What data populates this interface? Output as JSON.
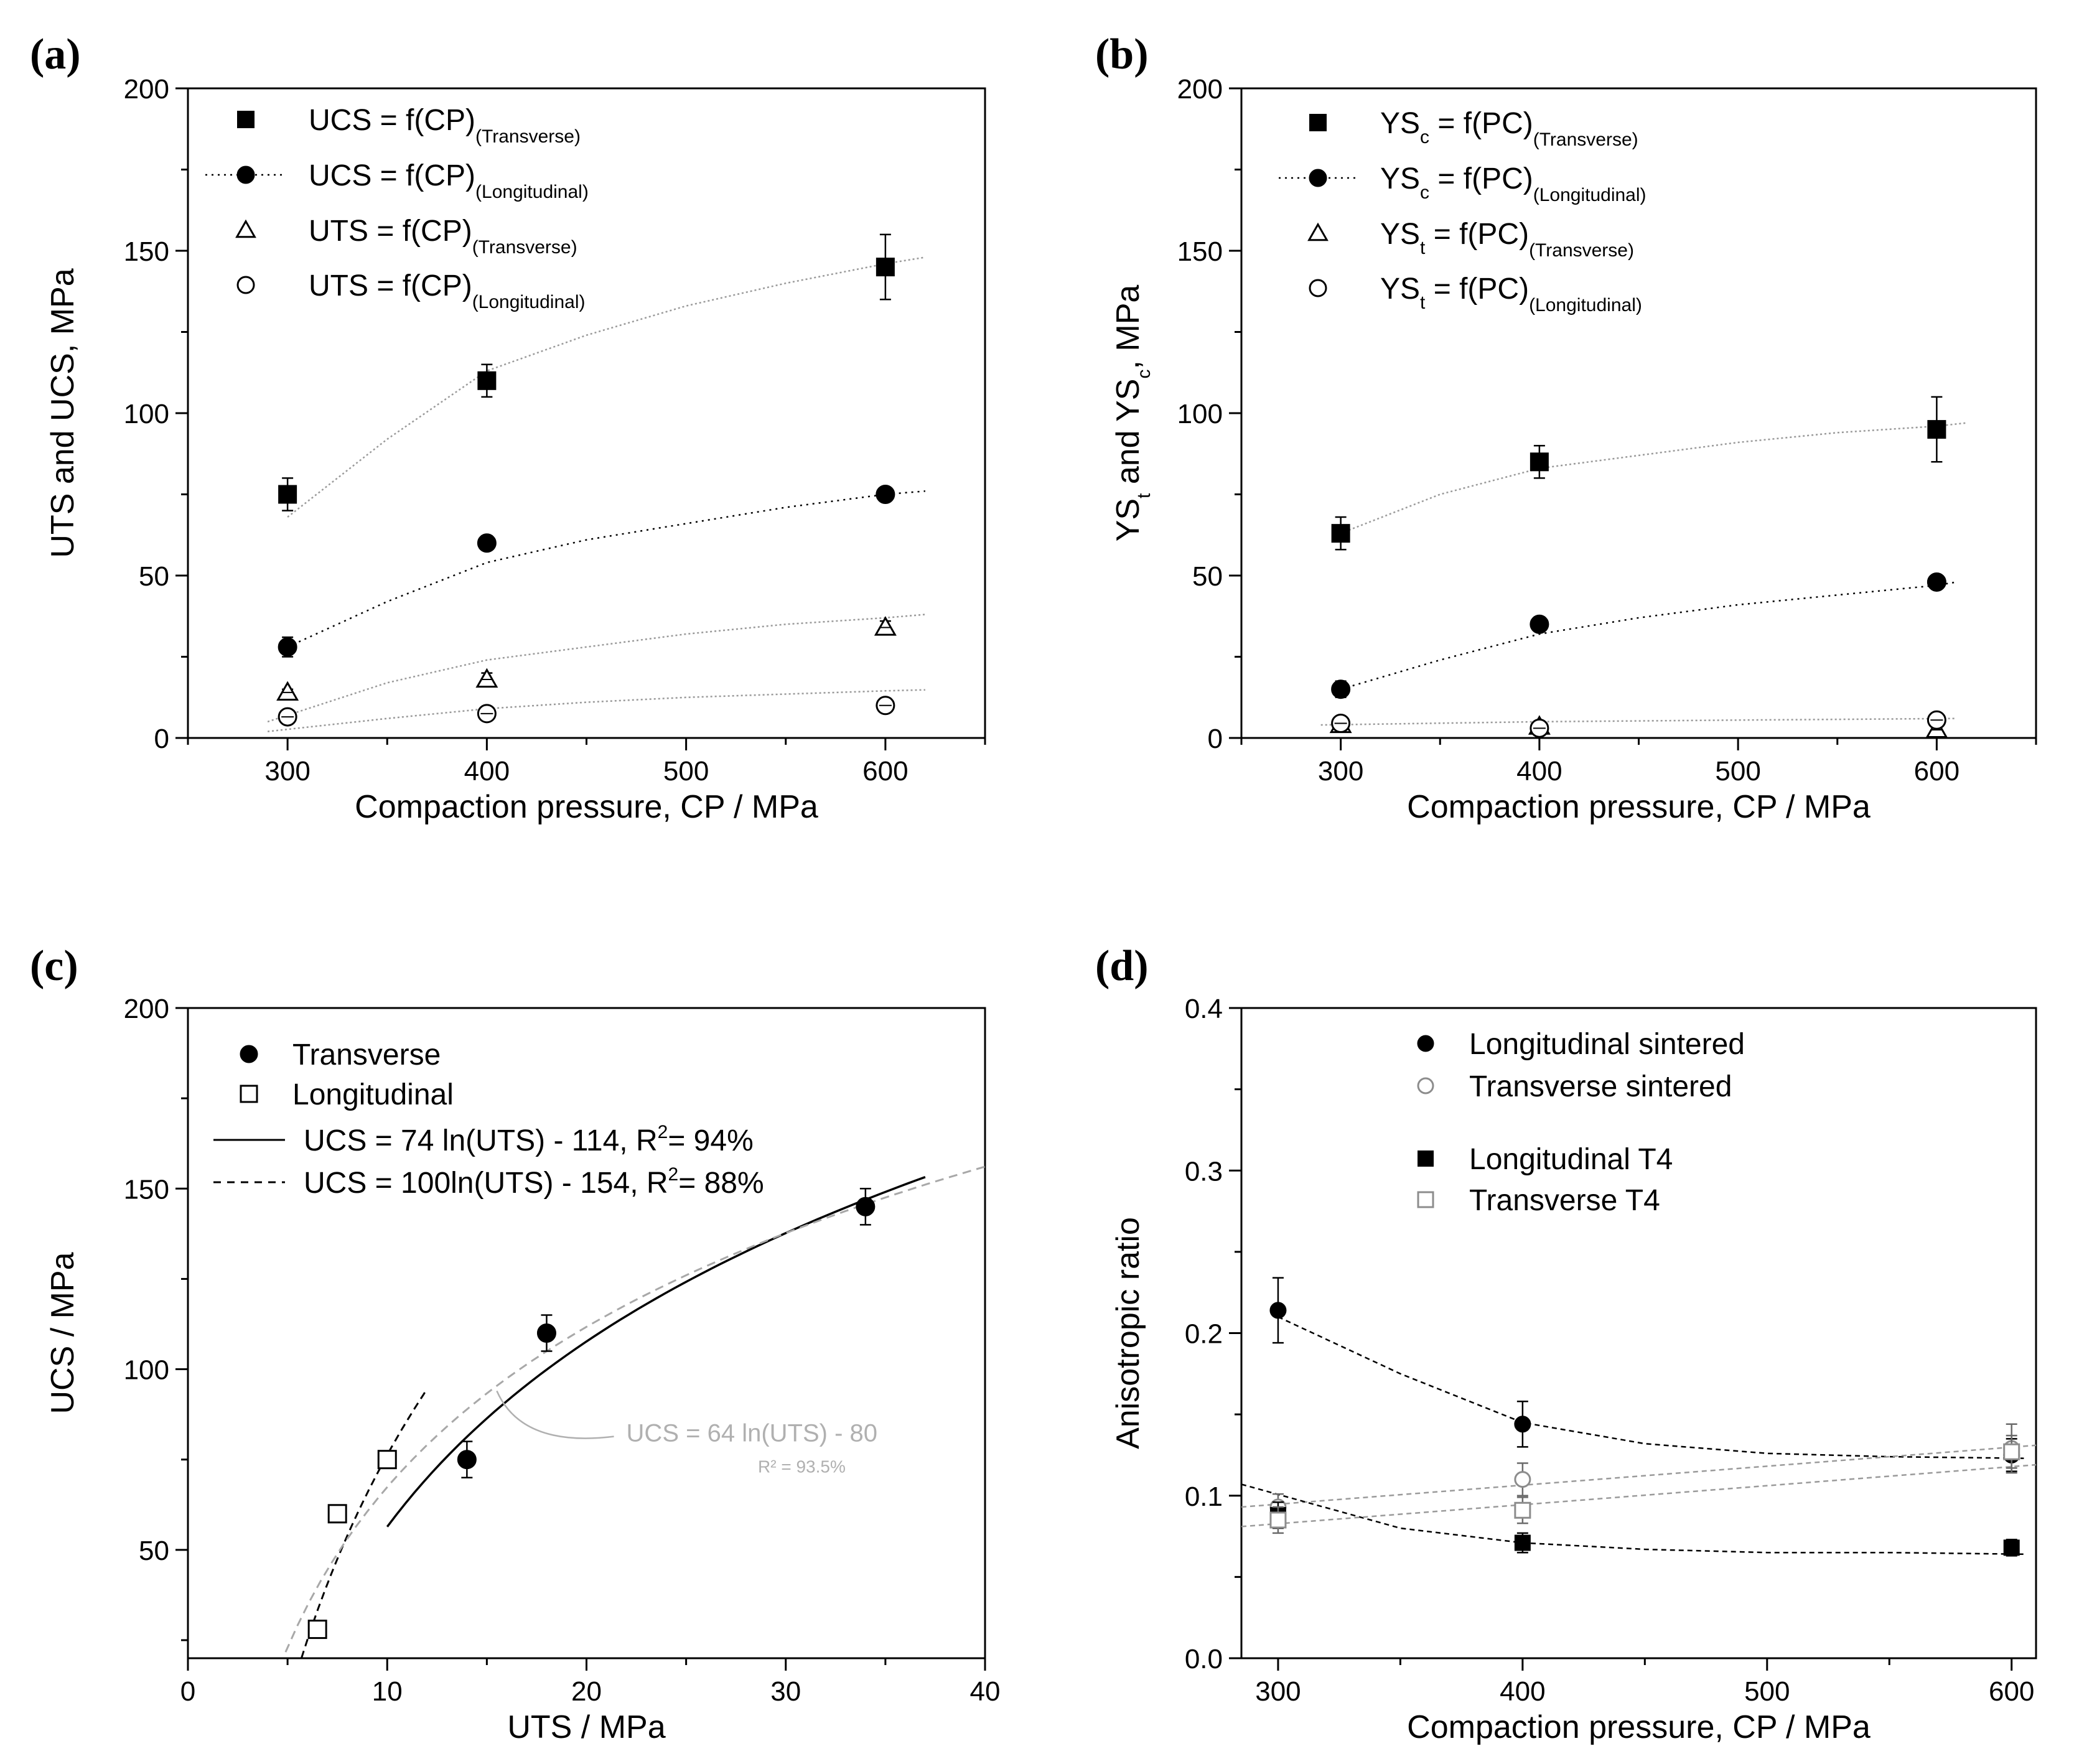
{
  "chart_data": [
    {
      "id": "a",
      "type": "scatter",
      "panel_label": "(a)",
      "xlabel": "Compaction pressure, CP  /  MPa",
      "ylabel": "UTS and UCS, MPa",
      "xlim": [
        250,
        650
      ],
      "ylim": [
        0,
        200
      ],
      "xticks": [
        300,
        400,
        500,
        600
      ],
      "yticks": [
        0,
        50,
        100,
        150,
        200
      ],
      "legend_position": "top-left",
      "series": [
        {
          "name": "UCS = f(CP)",
          "legend_main": "UCS = f(CP)",
          "legend_sub": "(Transverse)",
          "marker": "square-filled",
          "x": [
            300,
            400,
            600
          ],
          "y": [
            75,
            110,
            145
          ],
          "err": [
            5,
            5,
            10
          ],
          "fit_style": "gray-dotted",
          "fit": {
            "x": [
              300,
              350,
              400,
              450,
              500,
              550,
              600,
              620
            ],
            "y": [
              68,
              92,
              113,
              124,
              133,
              140,
              146,
              148
            ]
          }
        },
        {
          "name": "UCS = f(CP)",
          "legend_main": "UCS = f(CP)",
          "legend_sub": "(Longitudinal)",
          "marker": "circle-filled",
          "x": [
            300,
            400,
            600
          ],
          "y": [
            28,
            60,
            75
          ],
          "err": [
            3,
            0,
            0
          ],
          "fit_style": "black-dotted",
          "fit": {
            "x": [
              300,
              350,
              400,
              450,
              500,
              550,
              600,
              620
            ],
            "y": [
              28,
              42,
              54,
              61,
              66,
              71,
              75,
              76
            ]
          }
        },
        {
          "name": "UTS = f(CP)",
          "legend_main": "UTS = f(CP)",
          "legend_sub": "(Transverse)",
          "marker": "triangle-open",
          "x": [
            300,
            400,
            600
          ],
          "y": [
            14,
            18,
            34
          ],
          "err": [
            1,
            2,
            2
          ],
          "fit_style": "gray-dotted",
          "fit": {
            "x": [
              290,
              350,
              400,
              450,
              500,
              550,
              600,
              620
            ],
            "y": [
              5,
              17,
              24,
              28,
              32,
              35,
              37,
              38
            ]
          }
        },
        {
          "name": "UTS = f(CP)",
          "legend_main": "UTS = f(CP)",
          "legend_sub": "(Longitudinal)",
          "marker": "circle-open",
          "x": [
            300,
            400,
            600
          ],
          "y": [
            6.5,
            7.5,
            10
          ],
          "err": [
            1,
            1,
            0
          ],
          "fit_style": "gray-dotted",
          "fit": {
            "x": [
              290,
              350,
              400,
              450,
              500,
              550,
              600,
              620
            ],
            "y": [
              2,
              6,
              9,
              11,
              12.5,
              13.5,
              14.5,
              14.8
            ]
          }
        }
      ]
    },
    {
      "id": "b",
      "type": "scatter",
      "panel_label": "(b)",
      "xlabel": "Compaction pressure, CP  /  MPa",
      "ylabel_main": "YS",
      "ylabel_sub1": "t",
      "ylabel_mid": " and YS",
      "ylabel_sub2": "c",
      "ylabel_end": ", MPa",
      "xlim": [
        250,
        650
      ],
      "ylim": [
        0,
        200
      ],
      "xticks": [
        300,
        400,
        500,
        600
      ],
      "yticks": [
        0,
        50,
        100,
        150,
        200
      ],
      "legend_position": "top-left",
      "series": [
        {
          "name": "YSc = f(PC)",
          "legend_main": "YS",
          "legend_idx": "c",
          "legend_rest": " = f(PC)",
          "legend_sub": "(Transverse)",
          "marker": "square-filled",
          "x": [
            300,
            400,
            600
          ],
          "y": [
            63,
            85,
            95
          ],
          "err": [
            5,
            5,
            10
          ],
          "fit_style": "gray-dotted",
          "fit": {
            "x": [
              300,
              350,
              400,
              450,
              500,
              550,
              600,
              615
            ],
            "y": [
              63,
              75,
              83,
              87,
              91,
              94,
              96,
              97
            ]
          }
        },
        {
          "name": "YSc = f(PC)",
          "legend_main": "YS",
          "legend_idx": "c",
          "legend_rest": " = f(PC)",
          "legend_sub": "(Longitudinal)",
          "marker": "circle-filled",
          "x": [
            300,
            400,
            600
          ],
          "y": [
            15,
            35,
            48
          ],
          "err": [
            2.5,
            0,
            0
          ],
          "fit_style": "black-dotted",
          "fit": {
            "x": [
              300,
              350,
              400,
              450,
              500,
              550,
              600,
              610
            ],
            "y": [
              15,
              24,
              32,
              37,
              41,
              44,
              47,
              48
            ]
          }
        },
        {
          "name": "YSt = f(PC)",
          "legend_main": "YS",
          "legend_idx": "t",
          "legend_rest": " = f(PC)",
          "legend_sub": "(Transverse)",
          "marker": "triangle-open",
          "x": [
            300,
            400,
            600
          ],
          "y": [
            4,
            3.5,
            2.5
          ],
          "err": [
            1,
            1,
            1
          ],
          "fit_style": "gray-dotted",
          "fit": {
            "x": [],
            "y": []
          }
        },
        {
          "name": "YSt = f(PC)",
          "legend_main": "YS",
          "legend_idx": "t",
          "legend_rest": " = f(PC)",
          "legend_sub": "(Longitudinal)",
          "marker": "circle-open",
          "x": [
            300,
            400,
            600
          ],
          "y": [
            4.5,
            3,
            5.5
          ],
          "err": [
            1,
            1,
            1
          ],
          "fit_style": "gray-dotted",
          "fit": {
            "x": [
              290,
              400,
              500,
              610
            ],
            "y": [
              4,
              5,
              5.5,
              6
            ]
          }
        }
      ]
    },
    {
      "id": "c",
      "type": "scatter",
      "panel_label": "(c)",
      "xlabel": "UTS  /  MPa",
      "ylabel": "UCS  /  MPa",
      "xlim": [
        0,
        40
      ],
      "ylim": [
        20,
        200
      ],
      "xticks": [
        0,
        10,
        20,
        30,
        40
      ],
      "yticks": [
        50,
        100,
        150,
        200
      ],
      "legend_position": "top-left",
      "legend": [
        {
          "label": "Transverse",
          "kind": "circle-filled"
        },
        {
          "label": "Longitudinal",
          "kind": "square-open"
        },
        {
          "label_pre": "UCS =  74 ln(UTS) - 114, R",
          "label_sup": "2",
          "label_post": "= 94%",
          "kind": "solid-line"
        },
        {
          "label_pre": "UCS = 100ln(UTS) - 154, R",
          "label_sup": "2",
          "label_post": "= 88%",
          "kind": "dashed-line"
        }
      ],
      "series": [
        {
          "name": "Transverse",
          "marker": "circle-filled",
          "x": [
            14,
            18,
            34
          ],
          "y": [
            75,
            110,
            145
          ],
          "err": [
            5,
            5,
            5
          ]
        },
        {
          "name": "Longitudinal",
          "marker": "square-open",
          "x": [
            6.5,
            7.5,
            10
          ],
          "y": [
            28,
            60,
            75
          ],
          "err": [
            0,
            0,
            2
          ]
        }
      ],
      "fits": [
        {
          "name": "UCS = 74 ln(UTS) - 114",
          "style": "solid",
          "a": 74,
          "b": -114,
          "xrange": [
            10,
            37
          ]
        },
        {
          "name": "UCS = 100ln(UTS) - 154",
          "style": "dashed",
          "a": 100,
          "b": -154,
          "xrange": [
            5.7,
            12
          ]
        },
        {
          "name": "UCS = 64 ln(UTS) - 80",
          "style": "gray-dashed",
          "a": 64,
          "b": -80,
          "xrange": [
            4.9,
            40
          ]
        }
      ],
      "annotation": {
        "text": "UCS =  64 ln(UTS) - 80",
        "r2": "R² = 93.5%",
        "anchor_x": 22,
        "anchor_y": 80,
        "points_to_x": 15.5,
        "points_to_y": 94
      }
    },
    {
      "id": "d",
      "type": "scatter",
      "panel_label": "(d)",
      "xlabel": "Compaction pressure, CP  /  MPa",
      "ylabel": "Anisotropic ratio",
      "xlim": [
        285,
        610
      ],
      "ylim": [
        0,
        0.4
      ],
      "xticks": [
        300,
        400,
        500,
        600
      ],
      "yticks": [
        0.0,
        0.1,
        0.2,
        0.3,
        0.4
      ],
      "ytick_labels": [
        "0.0",
        "0.1",
        "0.2",
        "0.3",
        "0.4"
      ],
      "legend_position": "top",
      "series": [
        {
          "name": "Longitudinal sintered",
          "marker": "circle-filled",
          "color": "#000000",
          "x": [
            300,
            400,
            600
          ],
          "y": [
            0.214,
            0.144,
            0.125
          ],
          "err": [
            0.02,
            0.014,
            0.01
          ],
          "fit": {
            "x": [
              300,
              350,
              400,
              450,
              500,
              550,
              605
            ],
            "y": [
              0.21,
              0.175,
              0.145,
              0.132,
              0.126,
              0.124,
              0.123
            ]
          }
        },
        {
          "name": "Transverse sintered",
          "marker": "circle-open",
          "color": "#8c8c8c",
          "x": [
            300,
            400,
            600
          ],
          "y": [
            0.093,
            0.11,
            0.129
          ],
          "err": [
            0.008,
            0.01,
            0.015
          ],
          "fit": {
            "x": [
              285,
              610
            ],
            "y": [
              0.093,
              0.131
            ]
          }
        },
        {
          "name": "Longitudinal T4",
          "marker": "square-filled",
          "color": "#000000",
          "x": [
            300,
            400,
            600
          ],
          "y": [
            0.088,
            0.071,
            0.068
          ],
          "err": [
            0.008,
            0.006,
            0.005
          ],
          "fit": {
            "x": [
              285,
              350,
              400,
              450,
              500,
              550,
              605
            ],
            "y": [
              0.107,
              0.08,
              0.071,
              0.067,
              0.065,
              0.065,
              0.064
            ]
          }
        },
        {
          "name": "Transverse T4",
          "marker": "square-open",
          "color": "#8c8c8c",
          "x": [
            300,
            400,
            600
          ],
          "y": [
            0.085,
            0.091,
            0.127
          ],
          "err": [
            0.008,
            0.008,
            0.01
          ],
          "fit": {
            "x": [
              285,
              610
            ],
            "y": [
              0.081,
              0.119
            ]
          }
        }
      ]
    }
  ]
}
